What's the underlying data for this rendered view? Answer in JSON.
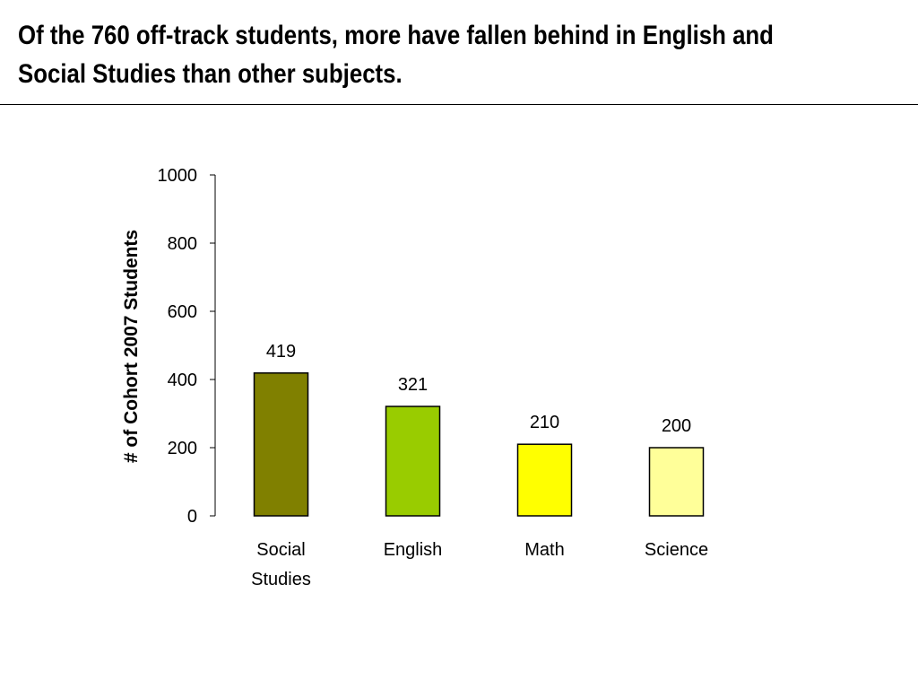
{
  "slide": {
    "title_lines": [
      "Of the 760 off-track students, more have fallen behind in English and",
      "Social Studies than other subjects."
    ]
  },
  "chart_data": {
    "type": "bar",
    "title": "",
    "xlabel": "",
    "ylabel": "# of Cohort 2007 Students",
    "ylim": [
      0,
      1000
    ],
    "yticks": [
      0,
      200,
      400,
      600,
      800,
      1000
    ],
    "categories": [
      [
        "Social",
        "Studies"
      ],
      [
        "English"
      ],
      [
        "Math"
      ],
      [
        "Science"
      ]
    ],
    "values": [
      419,
      321,
      210,
      200
    ],
    "data_labels": [
      "419",
      "321",
      "210",
      "200"
    ],
    "colors": [
      "#808000",
      "#99cc00",
      "#ffff00",
      "#ffff99"
    ],
    "grid": false,
    "legend": "none"
  }
}
